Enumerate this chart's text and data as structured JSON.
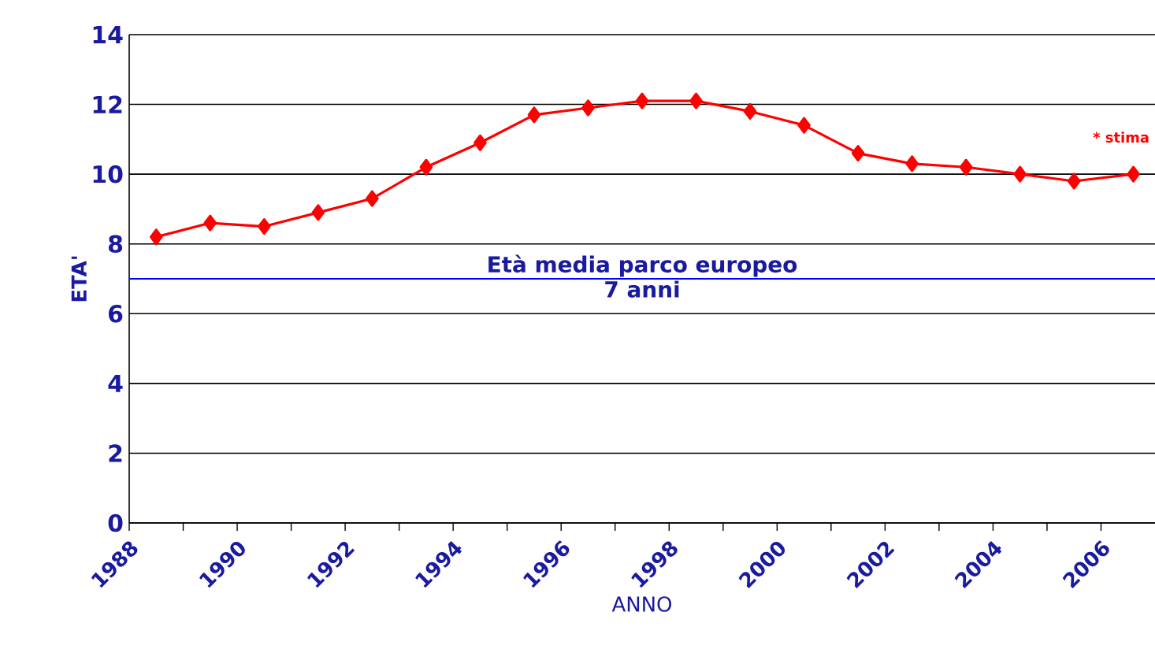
{
  "chart_data": {
    "type": "line",
    "xlabel": "ANNO",
    "ylabel": "ETA'",
    "x": [
      1988.5,
      1989.5,
      1990.5,
      1991.5,
      1992.5,
      1993.5,
      1994.5,
      1995.5,
      1996.5,
      1997.5,
      1998.5,
      1999.5,
      2000.5,
      2001.5,
      2002.5,
      2003.5,
      2004.5,
      2005.5,
      2006.6
    ],
    "series": [
      {
        "color": "#ff0000",
        "values": [
          8.2,
          8.6,
          8.5,
          8.9,
          9.3,
          10.2,
          10.9,
          11.7,
          11.9,
          12.1,
          12.1,
          11.8,
          11.4,
          10.6,
          10.3,
          10.2,
          10.0,
          9.8,
          10.0
        ]
      }
    ],
    "xlim": [
      1988,
      2007
    ],
    "ylim": [
      0,
      14
    ],
    "xticks": [
      1988,
      1990,
      1992,
      1994,
      1996,
      1998,
      2000,
      2002,
      2004,
      2006
    ],
    "yticks": [
      0,
      2,
      4,
      6,
      8,
      10,
      12,
      14
    ],
    "grid": "y",
    "marker": "diamond",
    "line_style": "solid",
    "ref_lines": [
      {
        "axis": "y",
        "value": 7,
        "label": "Età media parco europeo",
        "color": "#0000ff"
      }
    ],
    "annotations": [
      "7 anni",
      "* stima"
    ]
  }
}
